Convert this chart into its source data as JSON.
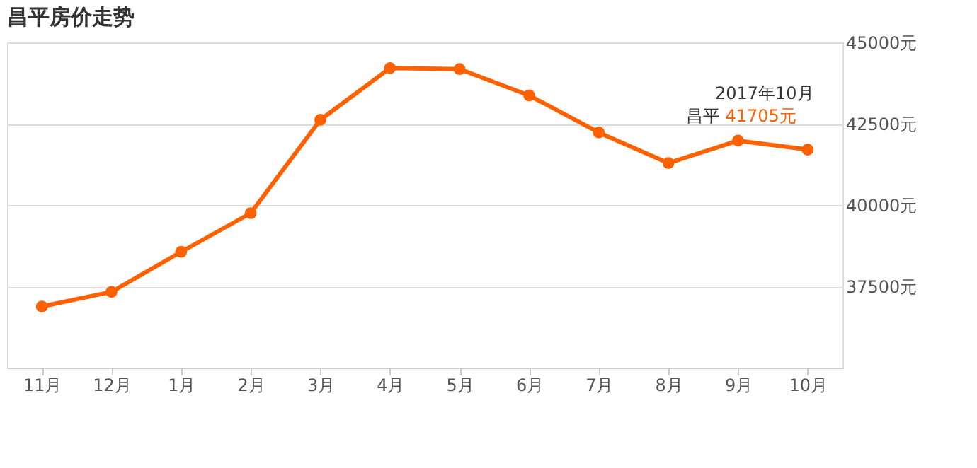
{
  "chart_data": {
    "type": "line",
    "title": "昌平房价走势",
    "categories": [
      "11月",
      "12月",
      "1月",
      "2月",
      "3月",
      "4月",
      "5月",
      "6月",
      "7月",
      "8月",
      "9月",
      "10月"
    ],
    "series": [
      {
        "name": "昌平",
        "color": "#ff6000",
        "values": [
          36880,
          37330,
          38560,
          39750,
          42620,
          44210,
          44180,
          43370,
          42230,
          41290,
          41980,
          41705
        ],
        "value_labels": [
          null,
          null,
          null,
          null,
          null,
          null,
          null,
          null,
          null,
          null,
          null,
          "41705元"
        ]
      }
    ],
    "ylim": [
      35000,
      45000
    ],
    "yticks": [
      {
        "value": 37500,
        "label": "37500元"
      },
      {
        "value": 40000,
        "label": "40000元"
      },
      {
        "value": 42500,
        "label": "42500元"
      },
      {
        "value": 45000,
        "label": "45000元"
      }
    ],
    "grid": "y",
    "marker": "circle",
    "line_style": "solid",
    "legend": false,
    "annotations": [
      "2017年10月"
    ]
  }
}
